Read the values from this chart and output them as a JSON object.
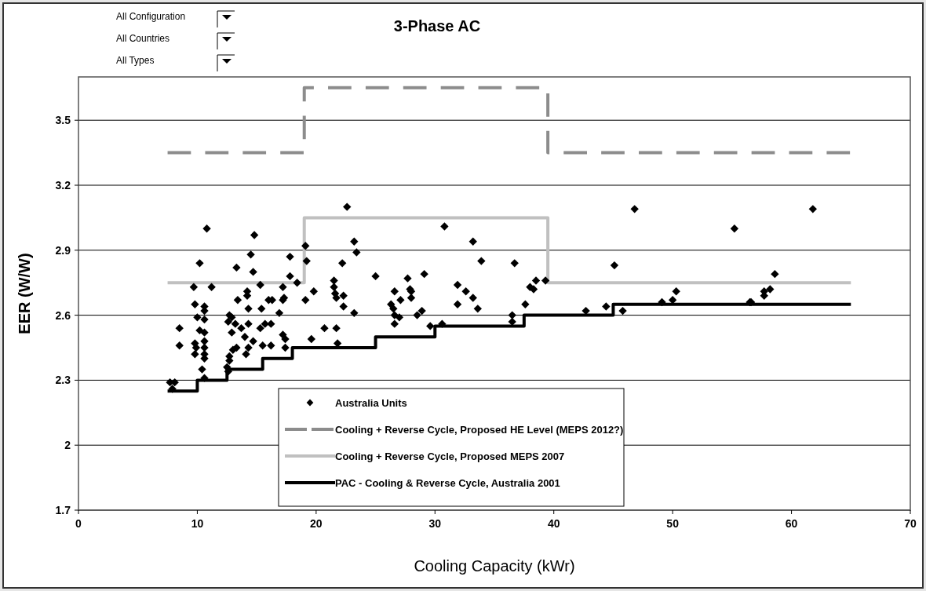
{
  "chart_data": {
    "type": "scatter",
    "title": "3-Phase AC",
    "xlabel": "Cooling Capacity (kWr)",
    "ylabel": "EER (W/W)",
    "annotations": [
      "All Configuration",
      "All Countries",
      "All Types"
    ],
    "xlim": [
      0,
      70
    ],
    "xticks": [
      0,
      10,
      20,
      30,
      40,
      50,
      60,
      70
    ],
    "ylim": [
      1.7,
      3.7
    ],
    "yticks": [
      1.7,
      2,
      2.3,
      2.6,
      2.9,
      3.2,
      3.5
    ],
    "grid": "y",
    "legend": "bottom",
    "marker": "diamond",
    "series": [
      {
        "name": "Australia Units",
        "color": "#000000",
        "x": [
          10.8,
          14.8,
          19.1,
          10.2,
          14.5,
          17.8,
          19.2,
          13.3,
          14.7,
          17.8,
          18.4,
          9.7,
          11.2,
          15.3,
          17.2,
          14.2,
          19.8,
          14.2,
          13.4,
          16.0,
          16.3,
          17.3,
          17.2,
          19.1,
          9.8,
          10.6,
          14.3,
          15.4,
          10.6,
          16.9,
          10.0,
          10.6,
          12.7,
          12.9,
          12.6,
          13.2,
          14.3,
          15.7,
          16.2,
          13.7,
          15.3,
          8.5,
          12.9,
          10.2,
          10.6,
          17.2,
          14.0,
          17.4,
          19.6,
          14.7,
          8.5,
          9.8,
          9.9,
          10.6,
          10.6,
          15.5,
          16.2,
          17.4,
          13.3,
          9.8,
          10.6,
          10.6,
          14.3,
          14.1,
          13.0,
          12.7,
          12.7,
          12.5,
          12.6,
          10.4,
          10.6,
          7.7,
          8.1,
          7.9,
          22.6,
          30.8,
          33.2,
          23.2,
          23.4,
          22.2,
          33.9,
          36.7,
          25.0,
          21.5,
          21.5,
          27.7,
          29.1,
          38.5,
          39.3,
          38.0,
          38.3,
          21.6,
          22.3,
          21.7,
          26.6,
          27.9,
          28.0,
          28.0,
          27.1,
          31.9,
          32.6,
          33.2,
          22.3,
          23.2,
          31.9,
          33.6,
          37.6,
          26.3,
          26.5,
          26.6,
          27.0,
          26.6,
          28.5,
          28.9,
          29.6,
          30.6,
          36.5,
          36.5,
          20.7,
          21.7,
          21.8,
          46.8,
          61.8,
          55.2,
          45.1,
          58.6,
          50.3,
          50.0,
          49.1,
          58.2,
          57.7,
          57.7,
          56.5,
          56.6,
          44.4,
          42.7,
          45.8
        ],
        "values": [
          3.0,
          2.97,
          2.92,
          2.84,
          2.88,
          2.87,
          2.85,
          2.82,
          2.8,
          2.78,
          2.75,
          2.73,
          2.73,
          2.74,
          2.73,
          2.71,
          2.71,
          2.69,
          2.67,
          2.67,
          2.67,
          2.68,
          2.67,
          2.67,
          2.65,
          2.64,
          2.63,
          2.63,
          2.62,
          2.61,
          2.59,
          2.58,
          2.6,
          2.59,
          2.57,
          2.56,
          2.56,
          2.56,
          2.56,
          2.54,
          2.54,
          2.54,
          2.52,
          2.53,
          2.52,
          2.51,
          2.5,
          2.49,
          2.49,
          2.48,
          2.46,
          2.47,
          2.45,
          2.48,
          2.45,
          2.46,
          2.46,
          2.45,
          2.45,
          2.42,
          2.42,
          2.4,
          2.45,
          2.42,
          2.44,
          2.41,
          2.39,
          2.36,
          2.34,
          2.35,
          2.31,
          2.29,
          2.29,
          2.26,
          3.1,
          3.01,
          2.94,
          2.94,
          2.89,
          2.84,
          2.85,
          2.84,
          2.78,
          2.76,
          2.73,
          2.77,
          2.79,
          2.76,
          2.76,
          2.73,
          2.72,
          2.7,
          2.69,
          2.68,
          2.71,
          2.72,
          2.71,
          2.68,
          2.67,
          2.74,
          2.71,
          2.68,
          2.64,
          2.61,
          2.65,
          2.63,
          2.65,
          2.65,
          2.63,
          2.6,
          2.59,
          2.56,
          2.6,
          2.62,
          2.55,
          2.56,
          2.6,
          2.57,
          2.54,
          2.54,
          2.47,
          3.09,
          3.09,
          3.0,
          2.83,
          2.79,
          2.71,
          2.67,
          2.66,
          2.72,
          2.71,
          2.69,
          2.66,
          2.66,
          2.64,
          2.62,
          2.62
        ]
      },
      {
        "name": "Cooling + Reverse Cycle, Proposed HE Level (MEPS 2012?)",
        "type": "step",
        "color": "#8c8c8c",
        "line_style": "dashed",
        "marker": "none",
        "x": [
          7.5,
          19,
          39.5,
          65
        ],
        "values": [
          3.35,
          3.65,
          3.35,
          3.35
        ]
      },
      {
        "name": "Cooling + Reverse Cycle, Proposed MEPS 2007",
        "type": "step",
        "color": "#c0c0c0",
        "line_style": "solid",
        "marker": "none",
        "x": [
          7.5,
          19,
          39.5,
          65
        ],
        "values": [
          2.75,
          3.05,
          2.75,
          2.75
        ]
      },
      {
        "name": "PAC - Cooling & Reverse Cycle, Australia 2001",
        "type": "step",
        "color": "#000000",
        "line_style": "solid",
        "marker": "none",
        "x": [
          7.5,
          10,
          12.5,
          15.5,
          18,
          25,
          30,
          37.5,
          45,
          65
        ],
        "values": [
          2.25,
          2.3,
          2.35,
          2.4,
          2.45,
          2.5,
          2.55,
          2.6,
          2.65,
          2.65
        ]
      }
    ]
  }
}
